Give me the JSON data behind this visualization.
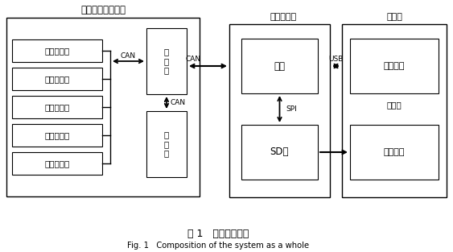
{
  "title_cn": "图 1   系统整体构成",
  "title_en": "Fig. 1   Composition of the system as a whole",
  "bg_color": "#ffffff",
  "outer_box_label": "车载钻机电控系统",
  "sensor_boxes": [
    "发动机参数",
    "压力传感器",
    "倾角传感器",
    "温度传感器",
    "液位传感器"
  ],
  "controller_box": "控\n制\n器",
  "display_box": "显\n示\n器",
  "recorder_label": "数据记录仪",
  "mainboard_label": "主板",
  "sdcard_label": "SD卡",
  "computer_label": "计算机",
  "param_config_label": "参数配置",
  "upper_machine_label": "上位机",
  "data_proc_label": "数据处理",
  "can_label": "CAN",
  "usb_label": "USB",
  "spi_label": "SPI",
  "figsize": [
    5.63,
    3.13
  ],
  "dpi": 100
}
